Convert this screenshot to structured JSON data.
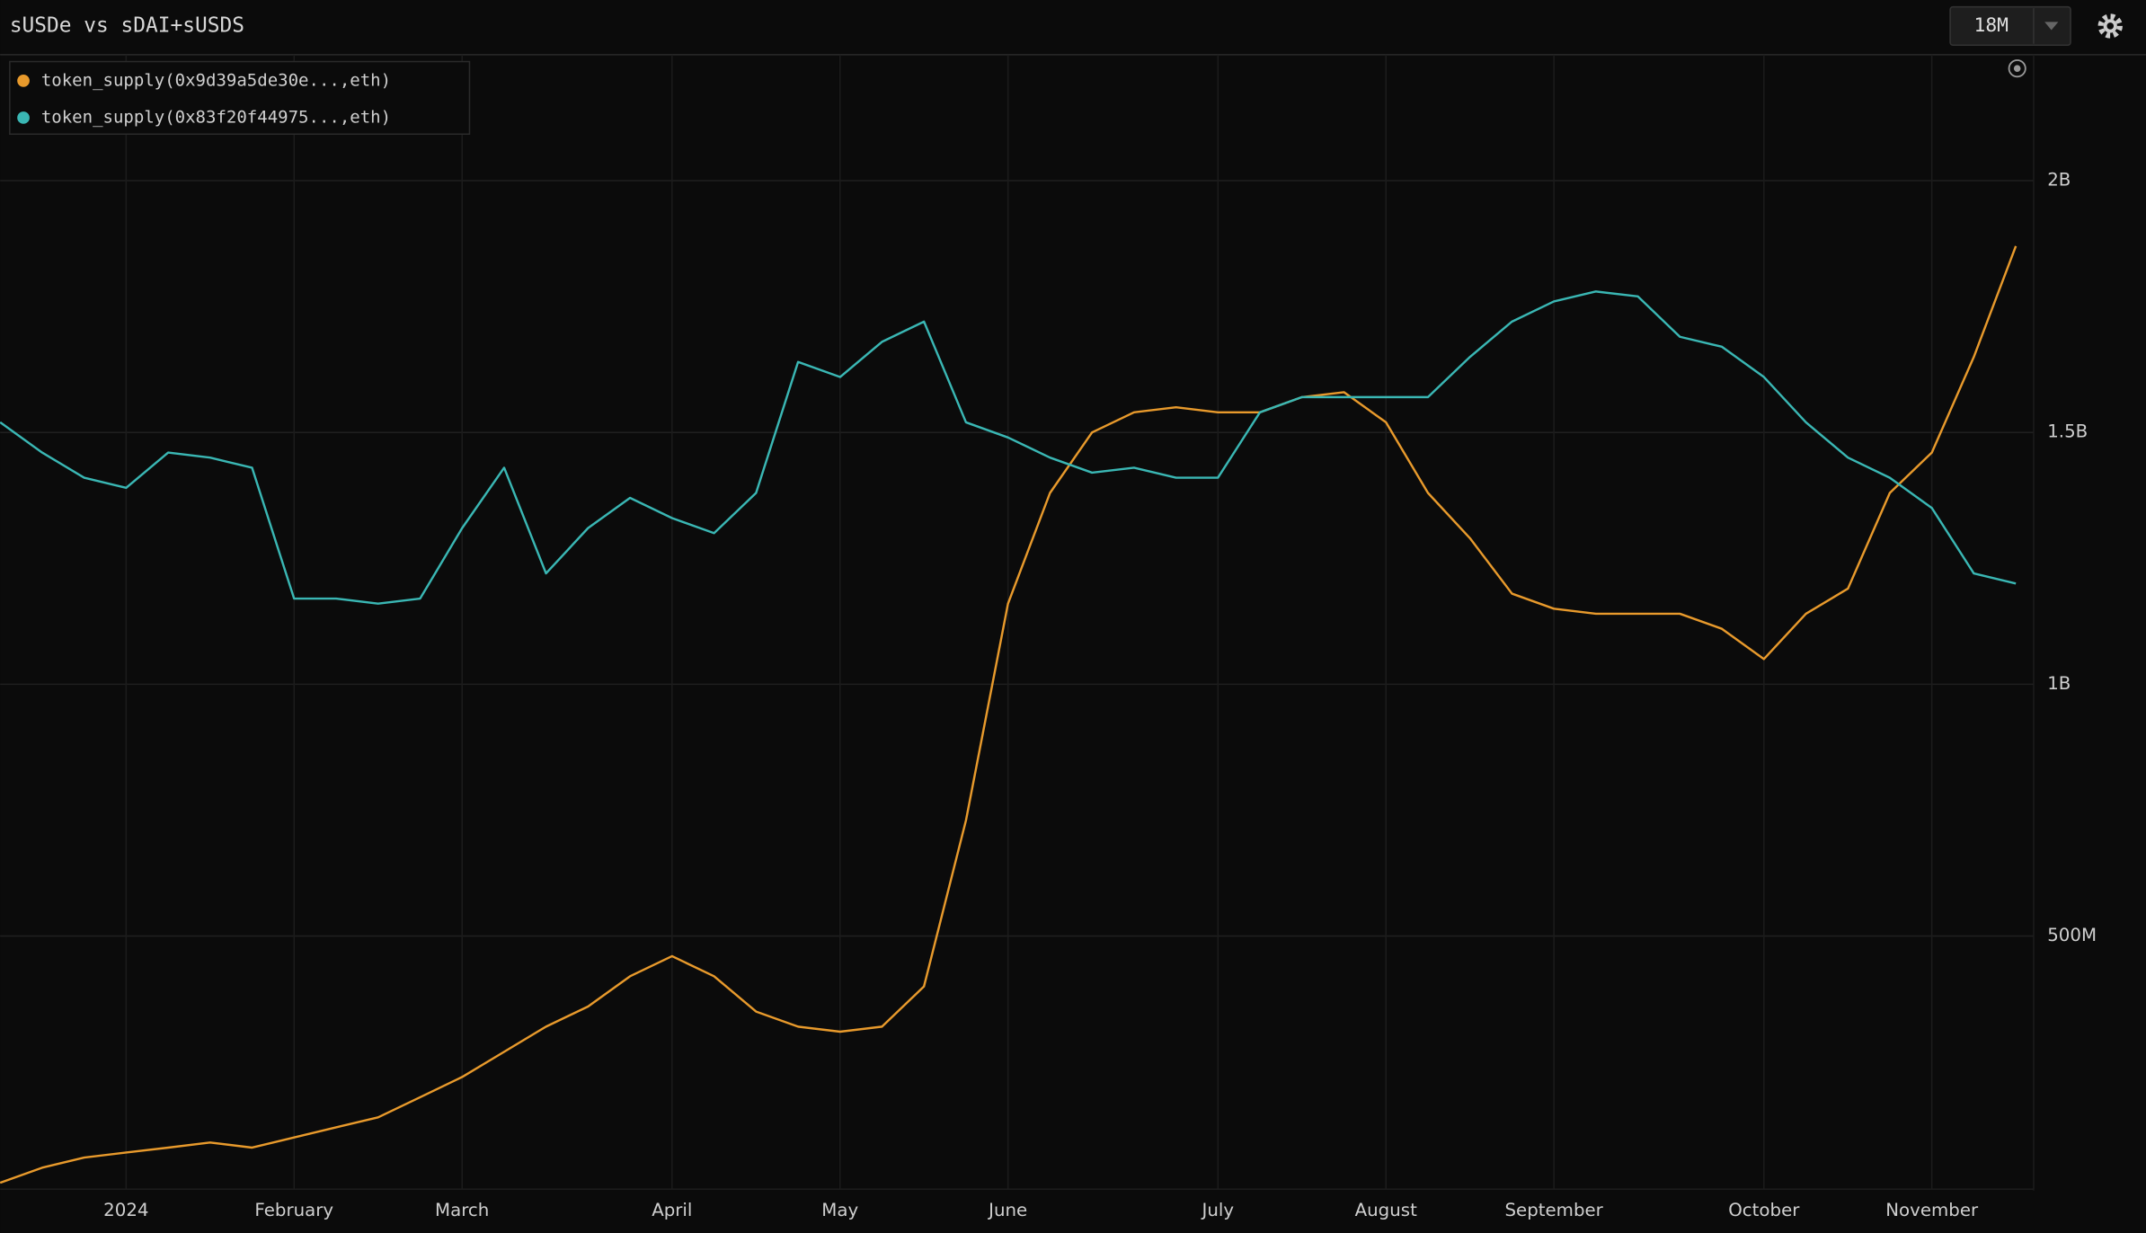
{
  "chart_data": {
    "type": "line",
    "title": "sUSDe vs sDAI+sUSDS",
    "range_button": "18M",
    "categories": [
      null,
      null,
      null,
      "2024",
      null,
      null,
      null,
      "February",
      null,
      null,
      null,
      "March",
      null,
      null,
      null,
      null,
      "April",
      null,
      null,
      null,
      "May",
      null,
      null,
      null,
      "June",
      null,
      null,
      null,
      null,
      "July",
      null,
      null,
      null,
      "August",
      null,
      null,
      null,
      "September",
      null,
      null,
      null,
      null,
      "October",
      null,
      null,
      null,
      "November",
      null,
      null
    ],
    "series": [
      {
        "name": "token_supply(0x9d39a5de30e...,eth)",
        "color": "#e89a2c",
        "values": [
          10000000,
          40000000,
          60000000,
          70000000,
          80000000,
          90000000,
          80000000,
          100000000,
          120000000,
          140000000,
          180000000,
          220000000,
          270000000,
          320000000,
          360000000,
          420000000,
          460000000,
          420000000,
          350000000,
          320000000,
          310000000,
          320000000,
          400000000,
          730000000,
          1160000000,
          1380000000,
          1500000000,
          1540000000,
          1550000000,
          1540000000,
          1540000000,
          1570000000,
          1580000000,
          1520000000,
          1380000000,
          1290000000,
          1180000000,
          1150000000,
          1140000000,
          1140000000,
          1140000000,
          1110000000,
          1050000000,
          1140000000,
          1190000000,
          1380000000,
          1460000000,
          1650000000,
          1870000000
        ]
      },
      {
        "name": "token_supply(0x83f20f44975...,eth)",
        "color": "#3ab7b4",
        "values": [
          1520000000,
          1460000000,
          1410000000,
          1390000000,
          1460000000,
          1450000000,
          1430000000,
          1170000000,
          1170000000,
          1160000000,
          1170000000,
          1310000000,
          1430000000,
          1220000000,
          1310000000,
          1370000000,
          1330000000,
          1300000000,
          1380000000,
          1640000000,
          1610000000,
          1680000000,
          1720000000,
          1520000000,
          1490000000,
          1450000000,
          1420000000,
          1430000000,
          1410000000,
          1410000000,
          1540000000,
          1570000000,
          1570000000,
          1570000000,
          1570000000,
          1650000000,
          1720000000,
          1760000000,
          1780000000,
          1770000000,
          1690000000,
          1670000000,
          1610000000,
          1520000000,
          1450000000,
          1410000000,
          1350000000,
          1220000000,
          1200000000
        ]
      }
    ],
    "ylim": [
      0,
      2250000000
    ],
    "yticks": [
      {
        "value": 500000000,
        "label": "500M"
      },
      {
        "value": 1000000000,
        "label": "1B"
      },
      {
        "value": 1500000000,
        "label": "1.5B"
      },
      {
        "value": 2000000000,
        "label": "2B"
      }
    ],
    "grid": true
  }
}
